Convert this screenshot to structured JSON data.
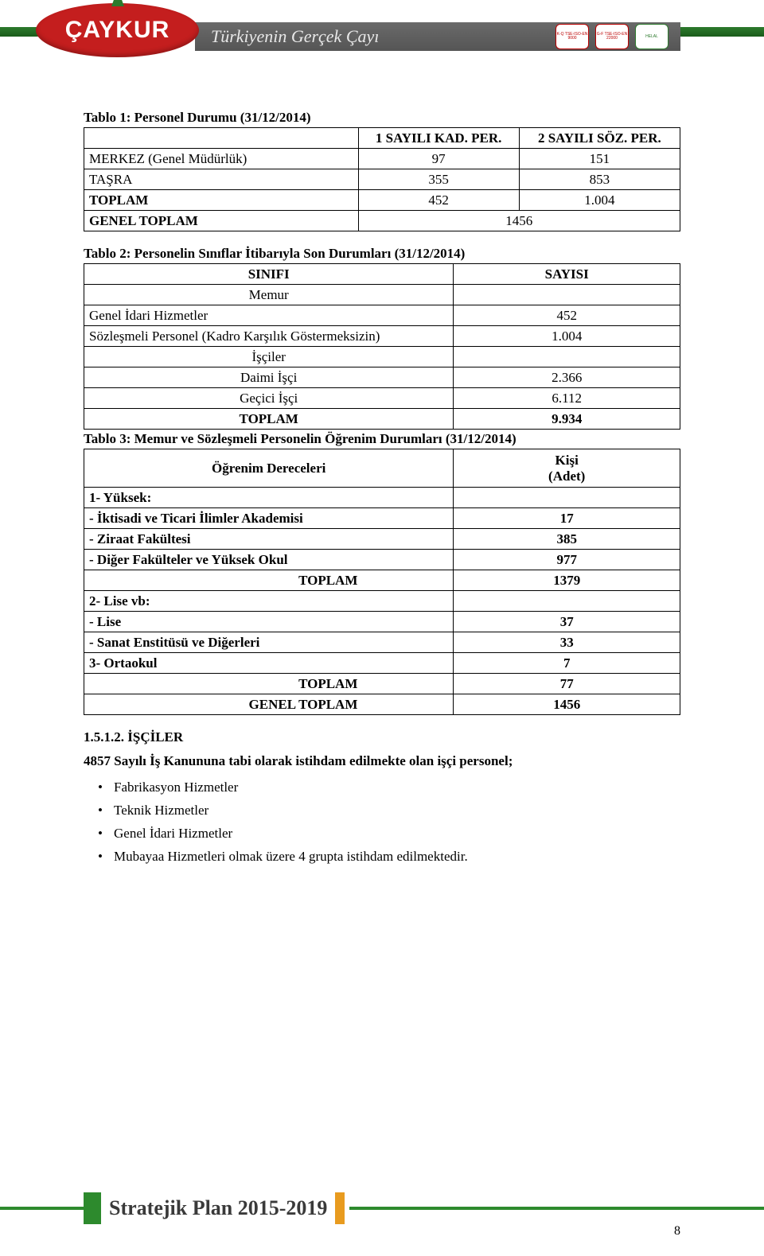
{
  "header": {
    "logo_text": "ÇAYKUR",
    "tagline": "Türkiyenin Gerçek Çayı",
    "badges": [
      "K-Q TSE-ISO-EN 9000",
      "G-F TSE-ISO-EN 22000",
      "HELAL"
    ]
  },
  "table1": {
    "title": "Tablo 1: Personel Durumu (31/12/2014)",
    "headers": [
      "",
      "1 SAYILI KAD. PER.",
      "2 SAYILI SÖZ. PER."
    ],
    "rows": [
      [
        "MERKEZ (Genel Müdürlük)",
        "97",
        "151"
      ],
      [
        "TAŞRA",
        "355",
        "853"
      ],
      [
        "TOPLAM",
        "452",
        "1.004"
      ]
    ],
    "total_row": [
      "GENEL TOPLAM",
      "1456"
    ]
  },
  "table2": {
    "title": "Tablo 2: Personelin Sınıflar İtibarıyla Son Durumları (31/12/2014)",
    "headers": [
      "SINIFI",
      "SAYISI"
    ],
    "rows": [
      {
        "label": "Memur",
        "val": "",
        "center": true
      },
      {
        "label": "Genel İdari Hizmetler",
        "val": "452"
      },
      {
        "label": "Sözleşmeli Personel (Kadro Karşılık Göstermeksizin)",
        "val": "1.004"
      },
      {
        "label": "İşçiler",
        "val": "",
        "center": true
      },
      {
        "label": "Daimi İşçi",
        "val": "2.366",
        "center": true
      },
      {
        "label": "Geçici İşçi",
        "val": "6.112",
        "center": true
      },
      {
        "label": "TOPLAM",
        "val": "9.934",
        "center": true,
        "bold": true
      }
    ]
  },
  "table3": {
    "title": "Tablo 3: Memur ve Sözleşmeli Personelin Öğrenim Durumları (31/12/2014)",
    "header_left": "Öğrenim Dereceleri",
    "header_right_l1": "Kişi",
    "header_right_l2": "(Adet)",
    "rows": [
      {
        "label": "1-  Yüksek:",
        "val": "",
        "bold": true
      },
      {
        "label": "-    İktisadi ve Ticari İlimler Akademisi",
        "val": "17",
        "bold": true
      },
      {
        "label": "-    Ziraat Fakültesi",
        "val": "385",
        "bold": true
      },
      {
        "label": "-    Diğer Fakülteler ve Yüksek Okul",
        "val": "977",
        "bold": true
      },
      {
        "label": "TOPLAM",
        "val": "1379",
        "bold": true,
        "right_in": true
      },
      {
        "label": "2-  Lise vb:",
        "val": "",
        "bold": true
      },
      {
        "label": "-    Lise",
        "val": "37",
        "bold": true
      },
      {
        "label": "-    Sanat Enstitüsü ve Diğerleri",
        "val": "33",
        "bold": true
      },
      {
        "label": "3-  Ortaokul",
        "val": "7",
        "bold": true
      },
      {
        "label": "TOPLAM",
        "val": "77",
        "bold": true,
        "right_in": true
      },
      {
        "label": "GENEL TOPLAM",
        "val": "1456",
        "bold": true,
        "right_in": true
      }
    ]
  },
  "section": {
    "heading": "1.5.1.2. İŞÇİLER",
    "intro": "4857 Sayılı İş Kanununa tabi olarak istihdam edilmekte olan işçi personel;",
    "bullets": [
      "Fabrikasyon Hizmetler",
      "Teknik Hizmetler",
      "Genel İdari Hizmetler",
      "Mubayaa Hizmetleri olmak üzere 4 grupta istihdam edilmektedir."
    ]
  },
  "footer": {
    "title": "Stratejik Plan 2015-2019",
    "page": "8"
  }
}
